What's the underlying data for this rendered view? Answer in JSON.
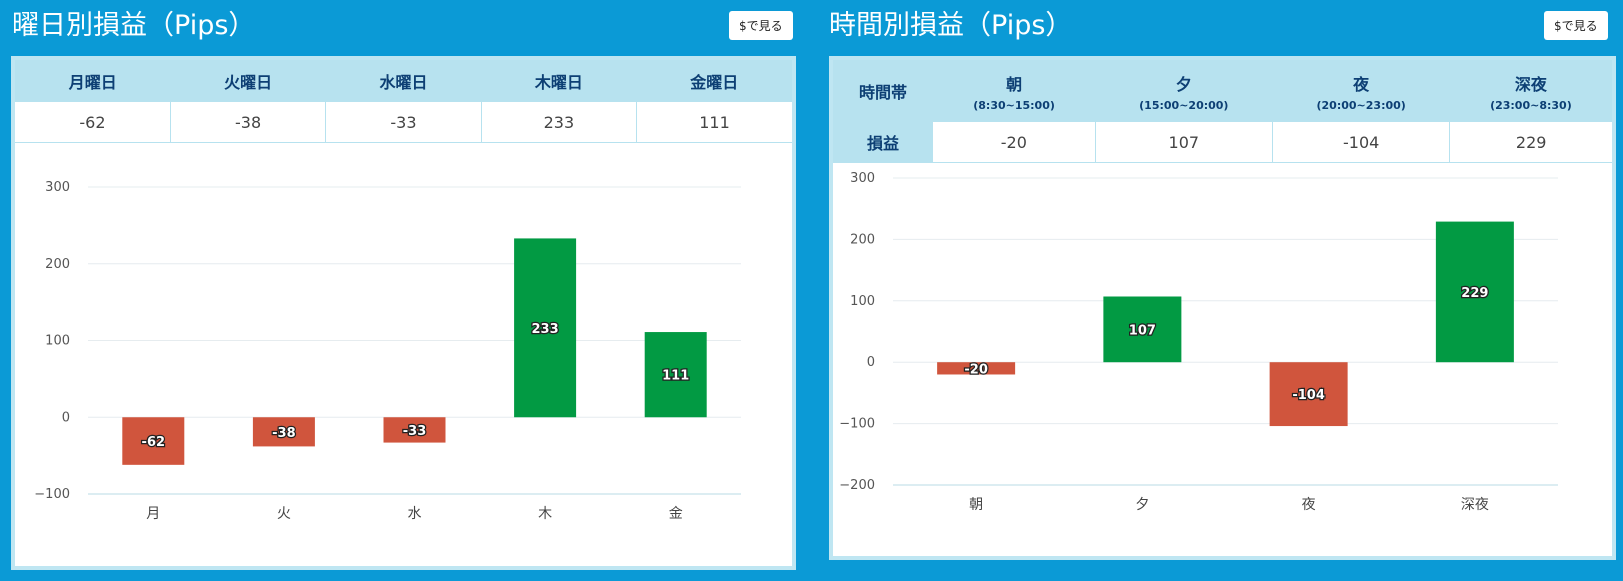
{
  "weekday": {
    "title": "曜日別損益（Pips）",
    "usd_button": "$で見る",
    "table": {
      "headers": [
        "月曜日",
        "火曜日",
        "水曜日",
        "木曜日",
        "金曜日"
      ],
      "values": [
        "-62",
        "-38",
        "-33",
        "233",
        "111"
      ]
    }
  },
  "timeslot": {
    "title": "時間別損益（Pips）",
    "usd_button": "$で見る",
    "table": {
      "corner_label": "時間帯",
      "row_label": "損益",
      "headers": [
        {
          "name": "朝",
          "range": "(8:30~15:00)"
        },
        {
          "name": "夕",
          "range": "(15:00~20:00)"
        },
        {
          "name": "夜",
          "range": "(20:00~23:00)"
        },
        {
          "name": "深夜",
          "range": "(23:00~8:30)"
        }
      ],
      "values": [
        "-20",
        "107",
        "-104",
        "229"
      ]
    }
  },
  "colors": {
    "positive": "#029a43",
    "negative": "#d0553d",
    "accent": "#0b9ad6"
  },
  "chart_data": [
    {
      "type": "bar",
      "categories": [
        "月",
        "火",
        "水",
        "木",
        "金"
      ],
      "values": [
        -62,
        -38,
        -33,
        233,
        111
      ],
      "data_labels": [
        "-62",
        "-38",
        "-33",
        "233",
        "111"
      ],
      "yticks": [
        "300",
        "200",
        "100",
        "0",
        "−100"
      ],
      "ylim": [
        -100,
        300
      ],
      "grid": true
    },
    {
      "type": "bar",
      "categories": [
        "朝",
        "夕",
        "夜",
        "深夜"
      ],
      "values": [
        -20,
        107,
        -104,
        229
      ],
      "data_labels": [
        "-20",
        "107",
        "-104",
        "229"
      ],
      "yticks": [
        "300",
        "200",
        "100",
        "0",
        "−100",
        "−200"
      ],
      "ylim": [
        -200,
        300
      ],
      "grid": true
    }
  ]
}
